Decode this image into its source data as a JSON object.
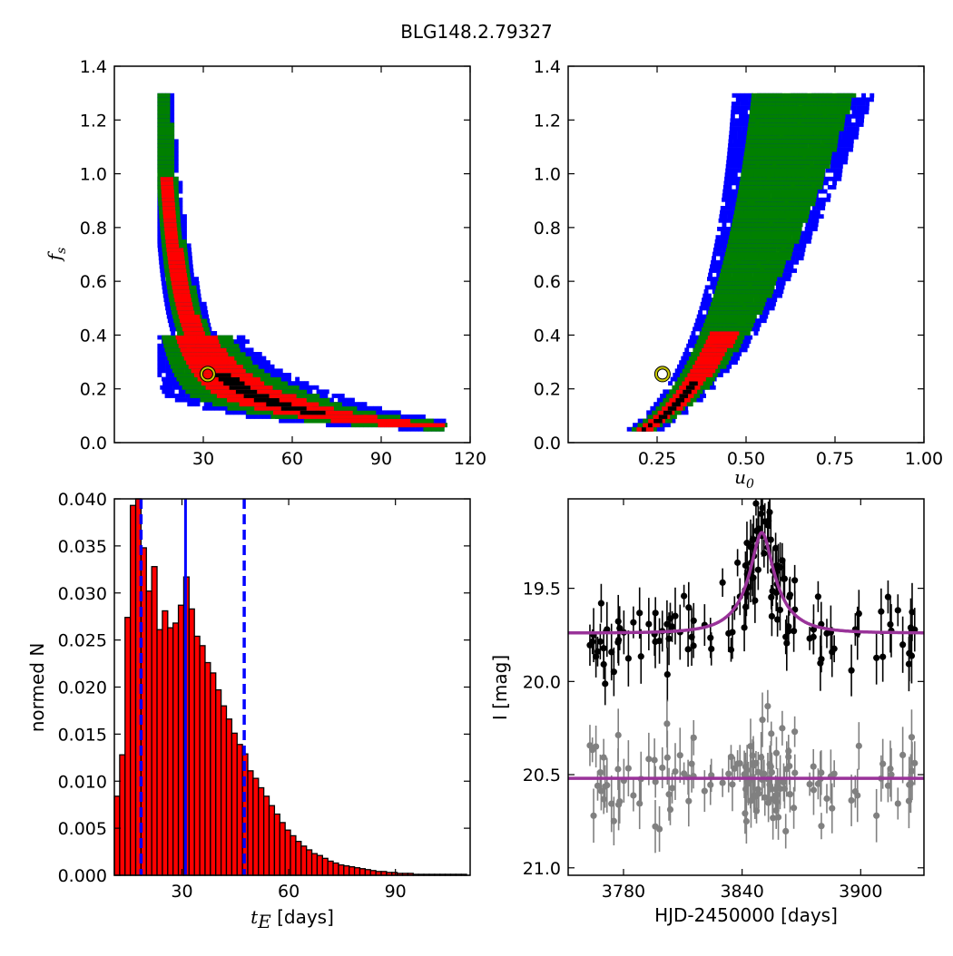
{
  "figure": {
    "title": "BLG148.2.79327"
  },
  "chart_data": [
    {
      "type": "heatmap",
      "panel": "top-left",
      "xlabel": "",
      "ylabel_var": "f",
      "ylabel_sub": "s",
      "xlim": [
        0,
        120
      ],
      "ylim": [
        0.0,
        1.4
      ],
      "xticks": [
        "30",
        "60",
        "90",
        "120"
      ],
      "yticks": [
        "0.0",
        "0.2",
        "0.4",
        "0.6",
        "0.8",
        "1.0",
        "1.2",
        "1.4"
      ],
      "relation": "f_s ≈ 6.7 / (t_E - 10.5)",
      "curve_points": [
        [
          15.5,
          1.3
        ],
        [
          17,
          1.05
        ],
        [
          19,
          0.78
        ],
        [
          22,
          0.55
        ],
        [
          26,
          0.42
        ],
        [
          31,
          0.31
        ],
        [
          37,
          0.23
        ],
        [
          45,
          0.17
        ],
        [
          55,
          0.12
        ],
        [
          70,
          0.08
        ],
        [
          90,
          0.06
        ],
        [
          110,
          0.05
        ]
      ],
      "levels": [
        {
          "name": "outer",
          "color": "#0000ff"
        },
        {
          "name": "middle",
          "color": "#008000"
        },
        {
          "name": "inner",
          "color": "#ff0000"
        },
        {
          "name": "core",
          "color": "#000000"
        }
      ],
      "best_fit": {
        "x": 31.5,
        "y": 0.255
      }
    },
    {
      "type": "heatmap",
      "panel": "top-right",
      "xlabel_var": "u",
      "xlabel_sub": "0",
      "ylabel": "",
      "xlim": [
        0.0,
        1.0
      ],
      "ylim": [
        0.0,
        1.4
      ],
      "xticks": [
        "0.25",
        "0.50",
        "0.75",
        "1.00"
      ],
      "yticks": [
        "0.0",
        "0.2",
        "0.4",
        "0.6",
        "0.8",
        "1.0",
        "1.2",
        "1.4"
      ],
      "curve_points": [
        [
          0.06,
          0.06
        ],
        [
          0.1,
          0.11
        ],
        [
          0.15,
          0.16
        ],
        [
          0.2,
          0.2
        ],
        [
          0.26,
          0.25
        ],
        [
          0.35,
          0.37
        ],
        [
          0.45,
          0.53
        ],
        [
          0.55,
          0.7
        ],
        [
          0.65,
          0.91
        ],
        [
          0.72,
          1.07
        ],
        [
          0.79,
          1.3
        ]
      ],
      "levels": [
        {
          "name": "outer",
          "color": "#0000ff"
        },
        {
          "name": "middle",
          "color": "#008000"
        },
        {
          "name": "inner",
          "color": "#ff0000"
        },
        {
          "name": "core",
          "color": "#000000"
        }
      ],
      "best_fit": {
        "x": 0.265,
        "y": 0.255
      }
    },
    {
      "type": "bar",
      "panel": "bottom-left",
      "xlabel_var": "t",
      "xlabel_sub": "E",
      "xlabel_rest": " [days]",
      "ylabel": "normed N",
      "xlim": [
        11,
        111
      ],
      "ylim": [
        0.0,
        0.04
      ],
      "xticks": [
        "30",
        "60",
        "90"
      ],
      "yticks": [
        "0.000",
        "0.005",
        "0.010",
        "0.015",
        "0.020",
        "0.025",
        "0.030",
        "0.035",
        "0.040"
      ],
      "bin_start": 11,
      "bin_width": 1.5,
      "values": [
        0.0084,
        0.0128,
        0.0274,
        0.0393,
        0.04,
        0.0348,
        0.0302,
        0.0328,
        0.0261,
        0.0281,
        0.0263,
        0.0268,
        0.0287,
        0.0317,
        0.0283,
        0.0254,
        0.0244,
        0.0226,
        0.0215,
        0.0197,
        0.018,
        0.0166,
        0.0151,
        0.0139,
        0.0129,
        0.0111,
        0.0103,
        0.0093,
        0.0084,
        0.0074,
        0.0065,
        0.0056,
        0.0048,
        0.0042,
        0.0036,
        0.0031,
        0.0027,
        0.0023,
        0.0021,
        0.0018,
        0.0015,
        0.0013,
        0.0011,
        0.001,
        0.0009,
        0.0008,
        0.0007,
        0.0006,
        0.0005,
        0.0004,
        0.0004,
        0.0003,
        0.0003,
        0.0002,
        0.0002,
        0.0002,
        0.0001,
        0.0001,
        0.0001,
        0.0001,
        0.0001,
        0.0001,
        0.0001,
        0.0001,
        0.0001,
        0.0001
      ],
      "bar_color": "#ff0000",
      "median": 31.0,
      "lower": 18.5,
      "upper": 47.5,
      "line_color": "#0000ff"
    },
    {
      "type": "scatter",
      "panel": "bottom-right",
      "xlabel": "HJD-2450000 [days]",
      "ylabel": "I [mag]",
      "xlim": [
        3752,
        3932
      ],
      "ylim": [
        21.04,
        19.02
      ],
      "y_inverted": true,
      "xticks": [
        "3780",
        "3840",
        "3900"
      ],
      "yticks": [
        "19.5",
        "20.0",
        "20.5",
        "21.0"
      ],
      "model": {
        "t0": 3850,
        "tE": 31,
        "u0": 0.26,
        "fs": 0.25,
        "baseline": 19.74,
        "color": "#993399"
      },
      "offset_series": {
        "baseline": 20.52,
        "color": "#808080"
      },
      "data_color": "#000000",
      "n_points": 140,
      "time_span": [
        3762,
        3931
      ]
    }
  ]
}
